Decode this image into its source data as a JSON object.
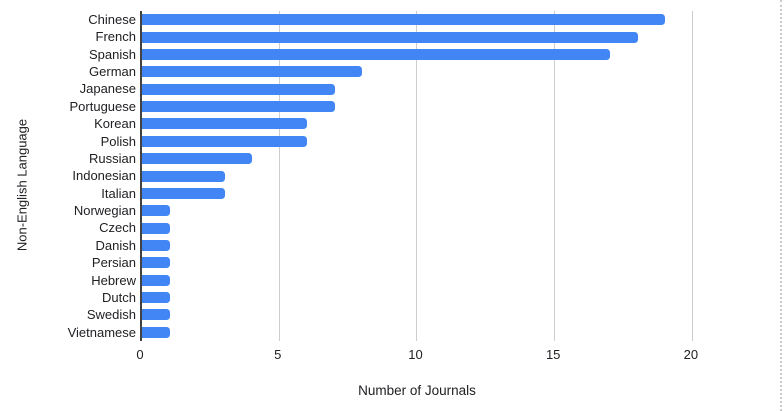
{
  "chart_data": {
    "type": "bar",
    "orientation": "horizontal",
    "title": "",
    "xlabel": "Number of Journals",
    "ylabel": "Non-English Language",
    "categories": [
      "Chinese",
      "French",
      "Spanish",
      "German",
      "Japanese",
      "Portuguese",
      "Korean",
      "Polish",
      "Russian",
      "Indonesian",
      "Italian",
      "Norwegian",
      "Czech",
      "Danish",
      "Persian",
      "Hebrew",
      "Dutch",
      "Swedish",
      "Vietnamese"
    ],
    "values": [
      19,
      18,
      17,
      8,
      7,
      7,
      6,
      6,
      4,
      3,
      3,
      1,
      1,
      1,
      1,
      1,
      1,
      1,
      1
    ],
    "xlim": [
      0,
      22
    ],
    "xticks": [
      0,
      5,
      10,
      15,
      20
    ],
    "grid": true,
    "legend": "none",
    "colors": {
      "bar": "#4285F4",
      "gridline": "#cdcdcd",
      "axis_line": "#424242",
      "text": "#202124"
    }
  }
}
